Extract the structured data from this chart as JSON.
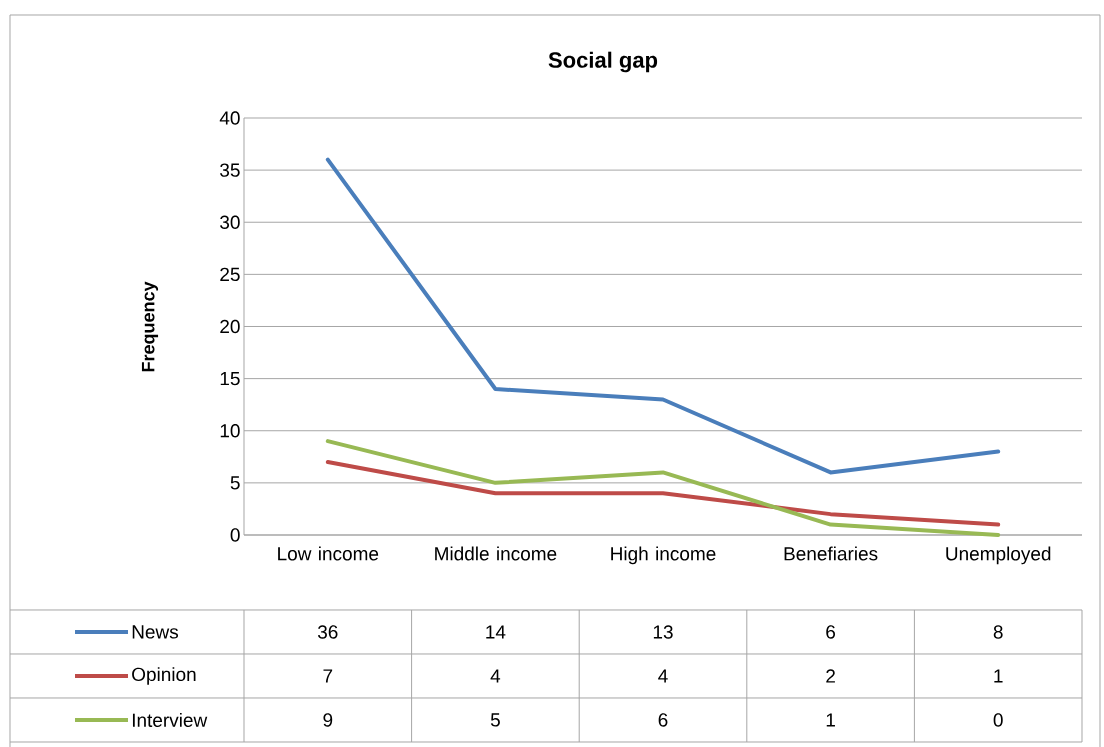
{
  "chart_data": {
    "type": "line",
    "title": "Social gap",
    "ylabel": "Frequency",
    "categories": [
      "Low income",
      "Middle income",
      "High income",
      "Benefiaries",
      "Unemployed"
    ],
    "series": [
      {
        "name": "News",
        "color": "#4a7ebb",
        "values": [
          36,
          14,
          13,
          6,
          8
        ]
      },
      {
        "name": "Opinion",
        "color": "#be4b48",
        "values": [
          7,
          4,
          4,
          2,
          1
        ]
      },
      {
        "name": "Interview",
        "color": "#98b954",
        "values": [
          9,
          5,
          6,
          1,
          0
        ]
      }
    ],
    "ylim": [
      0,
      40
    ],
    "yticks": [
      0,
      5,
      10,
      15,
      20,
      25,
      30,
      35,
      40
    ],
    "grid": "y",
    "legend": "bottom",
    "data_labels": true,
    "marker": "none",
    "line_style": "solid"
  }
}
